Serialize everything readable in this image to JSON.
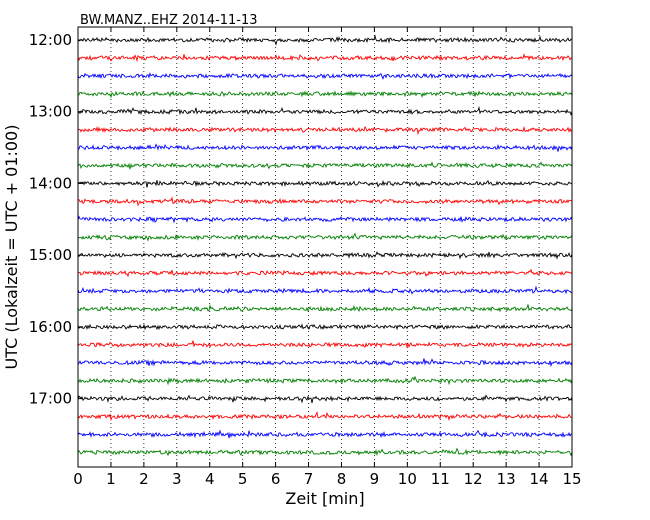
{
  "chart_data": {
    "type": "line",
    "chart_kind": "helicorder (dayplot)",
    "title": "BW.MANZ..EHZ 2014-11-13",
    "xlabel": "Zeit  [min]",
    "ylabel": "UTC (Lokalzeit = UTC + 01:00)",
    "xlim": [
      0,
      15
    ],
    "x_ticks": [
      "0",
      "1",
      "2",
      "3",
      "4",
      "5",
      "6",
      "7",
      "8",
      "9",
      "10",
      "11",
      "12",
      "13",
      "14",
      "15"
    ],
    "y_ticks": [
      "12:00",
      "13:00",
      "14:00",
      "15:00",
      "16:00",
      "17:00"
    ],
    "trace_minutes": 15,
    "trace_count": 24,
    "trace_start_times": [
      "12:00",
      "12:15",
      "12:30",
      "12:45",
      "13:00",
      "13:15",
      "13:30",
      "13:45",
      "14:00",
      "14:15",
      "14:30",
      "14:45",
      "15:00",
      "15:15",
      "15:30",
      "15:45",
      "16:00",
      "16:15",
      "16:30",
      "16:45",
      "17:00",
      "17:15",
      "17:30",
      "17:45"
    ],
    "trace_colors": [
      "#000000",
      "#ff0000",
      "#0000ff",
      "#008000"
    ],
    "grid": "vertical dotted lines at each minute"
  }
}
